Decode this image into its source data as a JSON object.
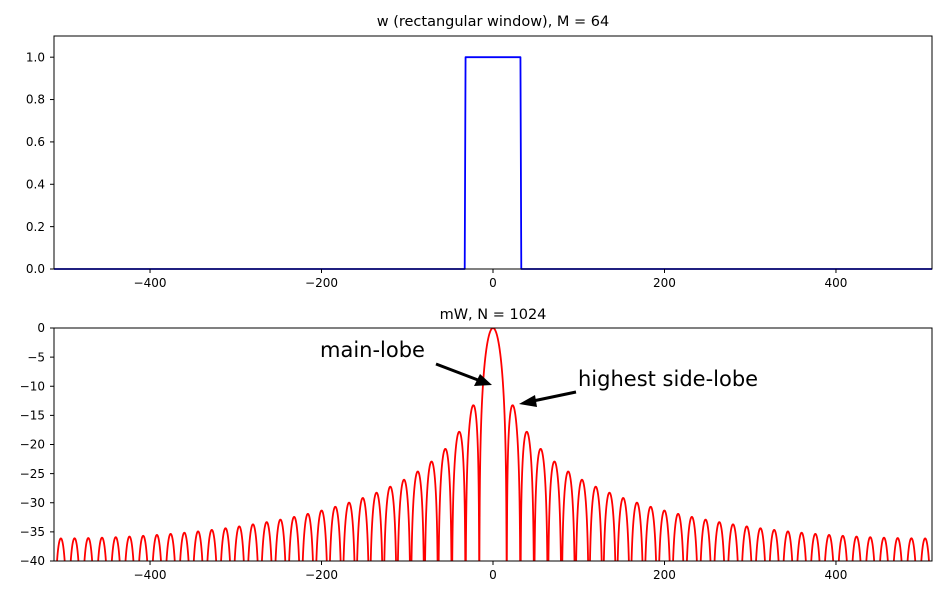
{
  "chart_data": [
    {
      "type": "line",
      "title": "w (rectangular window), M = 64",
      "xlabel": "",
      "ylabel": "",
      "xlim": [
        -512,
        512
      ],
      "ylim": [
        0,
        1.1
      ],
      "xticks": [
        -400,
        -200,
        0,
        200,
        400
      ],
      "xtick_labels": [
        "−400",
        "−200",
        "0",
        "200",
        "400"
      ],
      "yticks": [
        0.0,
        0.2,
        0.4,
        0.6,
        0.8,
        1.0
      ],
      "ytick_labels": [
        "0.0",
        "0.2",
        "0.4",
        "0.6",
        "0.8",
        "1.0"
      ],
      "grid": false,
      "series": [
        {
          "color": "#0000ff",
          "x": [
            -512,
            -33,
            -32,
            32,
            33,
            512
          ],
          "y": [
            0,
            0,
            1,
            1,
            0,
            0
          ]
        }
      ]
    },
    {
      "type": "line",
      "title": "mW, N = 1024",
      "xlabel": "",
      "ylabel": "",
      "xlim": [
        -512,
        512
      ],
      "ylim": [
        -40,
        0
      ],
      "xticks": [
        -400,
        -200,
        0,
        200,
        400
      ],
      "xtick_labels": [
        "−400",
        "−200",
        "0",
        "200",
        "400"
      ],
      "yticks": [
        0,
        -5,
        -10,
        -15,
        -20,
        -25,
        -30,
        -35,
        -40
      ],
      "ytick_labels": [
        "0",
        "−5",
        "−10",
        "−15",
        "−20",
        "−25",
        "−30",
        "−35",
        "−40"
      ],
      "grid": false,
      "series": [
        {
          "color": "#ff0000",
          "function": "20*log10(|sin(pi*64*k/1024)/(64*sin(pi*k/1024))|)",
          "M": 64,
          "N": 1024,
          "x_range": [
            -512,
            512
          ]
        }
      ],
      "annotations": [
        {
          "text": "main-lobe",
          "arrow_to": [
            0,
            -10
          ]
        },
        {
          "text": "highest side-lobe",
          "arrow_to": [
            30,
            -13
          ]
        }
      ]
    }
  ]
}
